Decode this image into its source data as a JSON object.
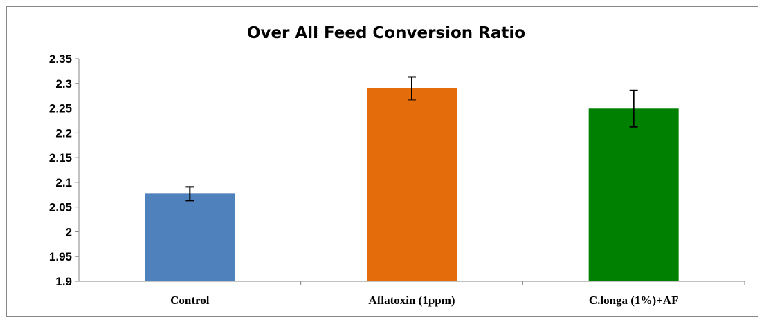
{
  "chart_data": {
    "type": "bar",
    "title": "Over All Feed Conversion Ratio",
    "xlabel": "",
    "ylabel": "",
    "categories": [
      "Control",
      "Aflatoxin (1ppm)",
      "C.longa (1%)+AF"
    ],
    "values": [
      2.077,
      2.29,
      2.249
    ],
    "errors": [
      0.014,
      0.023,
      0.037
    ],
    "colors": [
      "#4f81bd",
      "#e46c0a",
      "#008000"
    ],
    "ylim": [
      1.9,
      2.35
    ],
    "yticks": [
      1.9,
      1.95,
      2,
      2.05,
      2.1,
      2.15,
      2.2,
      2.25,
      2.3,
      2.35
    ],
    "ytick_labels": [
      "1.9",
      "1.95",
      "2",
      "2.05",
      "2.1",
      "2.15",
      "2.2",
      "2.25",
      "2.3",
      "2.35"
    ],
    "grid": false,
    "legend": "none"
  }
}
